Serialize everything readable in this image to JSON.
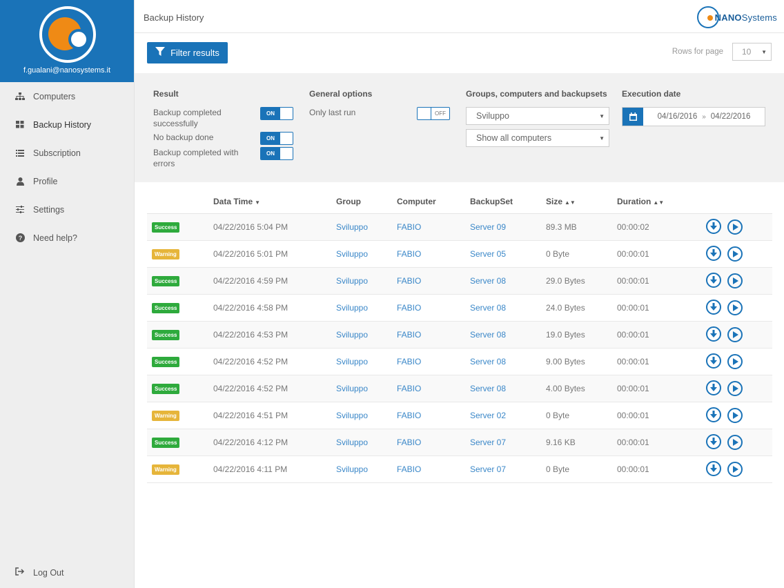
{
  "user": {
    "email": "f.gualani@nanosystems.it"
  },
  "sidebar": {
    "items": [
      {
        "label": "Computers",
        "icon": "sitemap-icon"
      },
      {
        "label": "Backup History",
        "icon": "grid-icon"
      },
      {
        "label": "Subscription",
        "icon": "list-icon"
      },
      {
        "label": "Profile",
        "icon": "user-icon"
      },
      {
        "label": "Settings",
        "icon": "sliders-icon"
      },
      {
        "label": "Need help?",
        "icon": "question-circle-icon"
      }
    ],
    "logout_label": "Log Out"
  },
  "header": {
    "title": "Backup History",
    "brand_bold": "NANO",
    "brand_rest": "Systems"
  },
  "toolbar": {
    "filter_label": "Filter results",
    "rows_label": "Rows for page",
    "rows_value": "10"
  },
  "filters": {
    "result": {
      "title": "Result",
      "options": [
        {
          "label": "Backup completed successfully",
          "state": "ON"
        },
        {
          "label": "No backup done",
          "state": "ON"
        },
        {
          "label": "Backup completed with errors",
          "state": "ON"
        }
      ]
    },
    "general": {
      "title": "General options",
      "options": [
        {
          "label": "Only last run",
          "state": "OFF"
        }
      ]
    },
    "groups": {
      "title": "Groups, computers and backupsets",
      "group_value": "Sviluppo",
      "computer_value": "Show all computers"
    },
    "date": {
      "title": "Execution date",
      "from": "04/16/2016",
      "to": "04/22/2016"
    }
  },
  "table": {
    "headers": [
      "",
      "Data Time",
      "Group",
      "Computer",
      "BackupSet",
      "Size",
      "Duration",
      ""
    ],
    "rows": [
      {
        "status": "Success",
        "datetime": "04/22/2016 5:04 PM",
        "group": "Sviluppo",
        "computer": "FABIO",
        "backupset": "Server 09",
        "size": "89.3 MB",
        "duration": "00:00:02"
      },
      {
        "status": "Warning",
        "datetime": "04/22/2016 5:01 PM",
        "group": "Sviluppo",
        "computer": "FABIO",
        "backupset": "Server 05",
        "size": "0 Byte",
        "duration": "00:00:01"
      },
      {
        "status": "Success",
        "datetime": "04/22/2016 4:59 PM",
        "group": "Sviluppo",
        "computer": "FABIO",
        "backupset": "Server 08",
        "size": "29.0 Bytes",
        "duration": "00:00:01"
      },
      {
        "status": "Success",
        "datetime": "04/22/2016 4:58 PM",
        "group": "Sviluppo",
        "computer": "FABIO",
        "backupset": "Server 08",
        "size": "24.0 Bytes",
        "duration": "00:00:01"
      },
      {
        "status": "Success",
        "datetime": "04/22/2016 4:53 PM",
        "group": "Sviluppo",
        "computer": "FABIO",
        "backupset": "Server 08",
        "size": "19.0 Bytes",
        "duration": "00:00:01"
      },
      {
        "status": "Success",
        "datetime": "04/22/2016 4:52 PM",
        "group": "Sviluppo",
        "computer": "FABIO",
        "backupset": "Server 08",
        "size": "9.00 Bytes",
        "duration": "00:00:01"
      },
      {
        "status": "Success",
        "datetime": "04/22/2016 4:52 PM",
        "group": "Sviluppo",
        "computer": "FABIO",
        "backupset": "Server 08",
        "size": "4.00 Bytes",
        "duration": "00:00:01"
      },
      {
        "status": "Warning",
        "datetime": "04/22/2016 4:51 PM",
        "group": "Sviluppo",
        "computer": "FABIO",
        "backupset": "Server 02",
        "size": "0 Byte",
        "duration": "00:00:01"
      },
      {
        "status": "Success",
        "datetime": "04/22/2016 4:12 PM",
        "group": "Sviluppo",
        "computer": "FABIO",
        "backupset": "Server 07",
        "size": "9.16 KB",
        "duration": "00:00:01"
      },
      {
        "status": "Warning",
        "datetime": "04/22/2016 4:11 PM",
        "group": "Sviluppo",
        "computer": "FABIO",
        "backupset": "Server 07",
        "size": "0 Byte",
        "duration": "00:00:01"
      }
    ]
  },
  "colors": {
    "primary": "#1a73b8",
    "accent": "#ef8a15",
    "success": "#2eaa3c",
    "warning": "#e6b53a"
  }
}
